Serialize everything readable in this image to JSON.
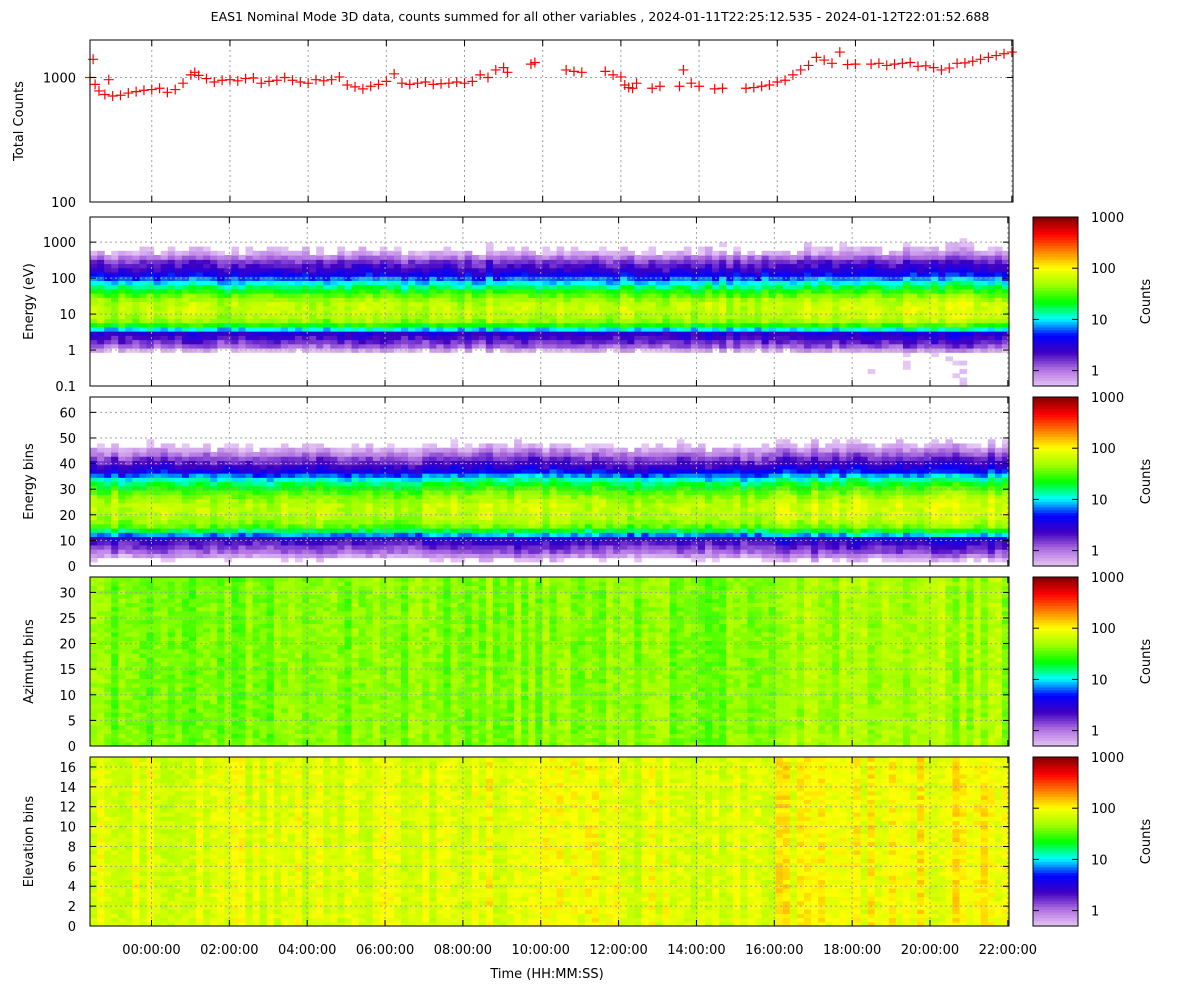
{
  "figure": {
    "title": "EAS1  Nominal Mode 3D data, counts summed for all other variables ,  2024-01-11T22:25:12.535 - 2024-01-12T22:01:52.688",
    "xlabel": "Time (HH:MM:SS)",
    "x_ticks": [
      "00:00:00",
      "02:00:00",
      "04:00:00",
      "06:00:00",
      "08:00:00",
      "10:00:00",
      "12:00:00",
      "14:00:00",
      "16:00:00",
      "18:00:00",
      "20:00:00",
      "22:00:00"
    ],
    "colors": {
      "line": "#ff0000",
      "grid": "#a0a0a0",
      "colormap": [
        "#e6c8f5",
        "#b070e0",
        "#4000c0",
        "#0000ff",
        "#00ffff",
        "#00ff00",
        "#a0ff00",
        "#ffff00",
        "#ff8000",
        "#ff0000",
        "#800000"
      ]
    }
  },
  "chart_data": [
    {
      "type": "scatter",
      "ylabel": "Total Counts",
      "yscale": "log",
      "ylim": [
        100,
        2000
      ],
      "y_ticks": [
        "100",
        "1000"
      ],
      "x_unit": "hours relative to 2024-01-12 00:00",
      "xlim": [
        -1.58,
        22.03
      ],
      "series": [
        {
          "points": [
            [
              -1.58,
              1000
            ],
            [
              -1.5,
              1400
            ],
            [
              -1.45,
              880
            ],
            [
              -1.35,
              780
            ],
            [
              -1.2,
              730
            ],
            [
              -1.1,
              960
            ],
            [
              -1,
              710
            ],
            [
              -0.8,
              720
            ],
            [
              -0.6,
              750
            ],
            [
              -0.4,
              770
            ],
            [
              -0.2,
              790
            ],
            [
              0,
              800
            ],
            [
              0.2,
              820
            ],
            [
              0.4,
              760
            ],
            [
              0.6,
              800
            ],
            [
              0.8,
              900
            ],
            [
              1,
              1050
            ],
            [
              1.1,
              1100
            ],
            [
              1.2,
              1040
            ],
            [
              1.4,
              980
            ],
            [
              1.6,
              920
            ],
            [
              1.8,
              950
            ],
            [
              2,
              960
            ],
            [
              2.2,
              940
            ],
            [
              2.4,
              980
            ],
            [
              2.6,
              990
            ],
            [
              2.8,
              900
            ],
            [
              3,
              930
            ],
            [
              3.2,
              950
            ],
            [
              3.4,
              1000
            ],
            [
              3.6,
              950
            ],
            [
              3.8,
              920
            ],
            [
              4,
              900
            ],
            [
              4.2,
              960
            ],
            [
              4.4,
              940
            ],
            [
              4.6,
              960
            ],
            [
              4.8,
              1010
            ],
            [
              5,
              870
            ],
            [
              5.2,
              840
            ],
            [
              5.4,
              810
            ],
            [
              5.6,
              850
            ],
            [
              5.8,
              880
            ],
            [
              6,
              930
            ],
            [
              6.2,
              1070
            ],
            [
              6.4,
              900
            ],
            [
              6.6,
              880
            ],
            [
              6.8,
              900
            ],
            [
              7,
              920
            ],
            [
              7.2,
              880
            ],
            [
              7.4,
              890
            ],
            [
              7.6,
              900
            ],
            [
              7.8,
              920
            ],
            [
              8,
              900
            ],
            [
              8.2,
              930
            ],
            [
              8.4,
              1050
            ],
            [
              8.6,
              1000
            ],
            [
              8.8,
              1150
            ],
            [
              9,
              1200
            ],
            [
              9.1,
              1100
            ],
            [
              9.7,
              1280
            ],
            [
              9.8,
              1320
            ],
            [
              10.6,
              1150
            ],
            [
              10.8,
              1120
            ],
            [
              11,
              1100
            ],
            [
              11.6,
              1120
            ],
            [
              11.8,
              1050
            ],
            [
              12,
              1010
            ],
            [
              12.1,
              870
            ],
            [
              12.2,
              830
            ],
            [
              12.3,
              820
            ],
            [
              12.4,
              900
            ],
            [
              12.8,
              820
            ],
            [
              13,
              850
            ],
            [
              13.5,
              850
            ],
            [
              13.6,
              1150
            ],
            [
              13.8,
              900
            ],
            [
              14,
              850
            ],
            [
              14.4,
              810
            ],
            [
              14.6,
              820
            ],
            [
              15.2,
              820
            ],
            [
              15.4,
              830
            ],
            [
              15.6,
              850
            ],
            [
              15.8,
              870
            ],
            [
              16,
              920
            ],
            [
              16.2,
              950
            ],
            [
              16.4,
              1050
            ],
            [
              16.6,
              1150
            ],
            [
              16.8,
              1250
            ],
            [
              17,
              1450
            ],
            [
              17.2,
              1380
            ],
            [
              17.4,
              1300
            ],
            [
              17.6,
              1600
            ],
            [
              17.8,
              1270
            ],
            [
              18,
              1280
            ],
            [
              18.4,
              1280
            ],
            [
              18.6,
              1300
            ],
            [
              18.8,
              1250
            ],
            [
              19,
              1280
            ],
            [
              19.2,
              1300
            ],
            [
              19.4,
              1320
            ],
            [
              19.6,
              1230
            ],
            [
              19.8,
              1240
            ],
            [
              20,
              1200
            ],
            [
              20.2,
              1150
            ],
            [
              20.4,
              1190
            ],
            [
              20.6,
              1300
            ],
            [
              20.8,
              1310
            ],
            [
              21,
              1350
            ],
            [
              21.2,
              1400
            ],
            [
              21.4,
              1450
            ],
            [
              21.6,
              1500
            ],
            [
              21.8,
              1550
            ],
            [
              22,
              1600
            ]
          ]
        }
      ]
    },
    {
      "type": "heatmap",
      "ylabel": "Energy (eV)",
      "yscale": "log",
      "ylim": [
        0.1,
        5000
      ],
      "y_ticks": [
        "0.1",
        "1",
        "10",
        "100",
        "1000"
      ],
      "z_label": "Counts",
      "z_ticks": [
        "1",
        "10",
        "100",
        "1000"
      ],
      "zlim": [
        0.5,
        1000
      ],
      "profile": [
        [
          0.8,
          0.3
        ],
        [
          1.2,
          1
        ],
        [
          2,
          2
        ],
        [
          3,
          3
        ],
        [
          4,
          12
        ],
        [
          6,
          40
        ],
        [
          10,
          60
        ],
        [
          20,
          60
        ],
        [
          30,
          40
        ],
        [
          60,
          15
        ],
        [
          150,
          3
        ],
        [
          300,
          1.5
        ],
        [
          500,
          0.6
        ],
        [
          1500,
          0.2
        ]
      ]
    },
    {
      "type": "heatmap",
      "ylabel": "Energy bins",
      "ylim": [
        0,
        66
      ],
      "y_ticks": [
        "0",
        "10",
        "20",
        "30",
        "40",
        "50",
        "60"
      ],
      "z_label": "Counts",
      "z_ticks": [
        "1",
        "10",
        "100",
        "1000"
      ],
      "zlim": [
        0.5,
        1000
      ],
      "profile": [
        [
          0,
          0.2
        ],
        [
          5,
          1
        ],
        [
          9,
          2
        ],
        [
          11,
          3
        ],
        [
          13,
          12
        ],
        [
          16,
          40
        ],
        [
          20,
          60
        ],
        [
          24,
          60
        ],
        [
          28,
          40
        ],
        [
          33,
          15
        ],
        [
          38,
          3
        ],
        [
          42,
          1.5
        ],
        [
          46,
          0.6
        ],
        [
          52,
          0.2
        ]
      ]
    },
    {
      "type": "heatmap",
      "ylabel": "Azimuth bins",
      "ylim": [
        0,
        33
      ],
      "y_ticks": [
        "0",
        "5",
        "10",
        "15",
        "20",
        "25",
        "30"
      ],
      "z_label": "Counts",
      "z_ticks": [
        "1",
        "10",
        "100",
        "1000"
      ],
      "zlim": [
        0.5,
        1000
      ],
      "profile": [
        [
          0,
          40
        ],
        [
          33,
          40
        ]
      ]
    },
    {
      "type": "heatmap",
      "ylabel": "Elevation bins",
      "ylim": [
        0,
        17
      ],
      "y_ticks": [
        "0",
        "2",
        "4",
        "6",
        "8",
        "10",
        "12",
        "14",
        "16"
      ],
      "z_label": "Counts",
      "z_ticks": [
        "1",
        "10",
        "100",
        "1000"
      ],
      "zlim": [
        0.5,
        1000
      ],
      "profile": [
        [
          0,
          80
        ],
        [
          17,
          80
        ]
      ]
    }
  ]
}
